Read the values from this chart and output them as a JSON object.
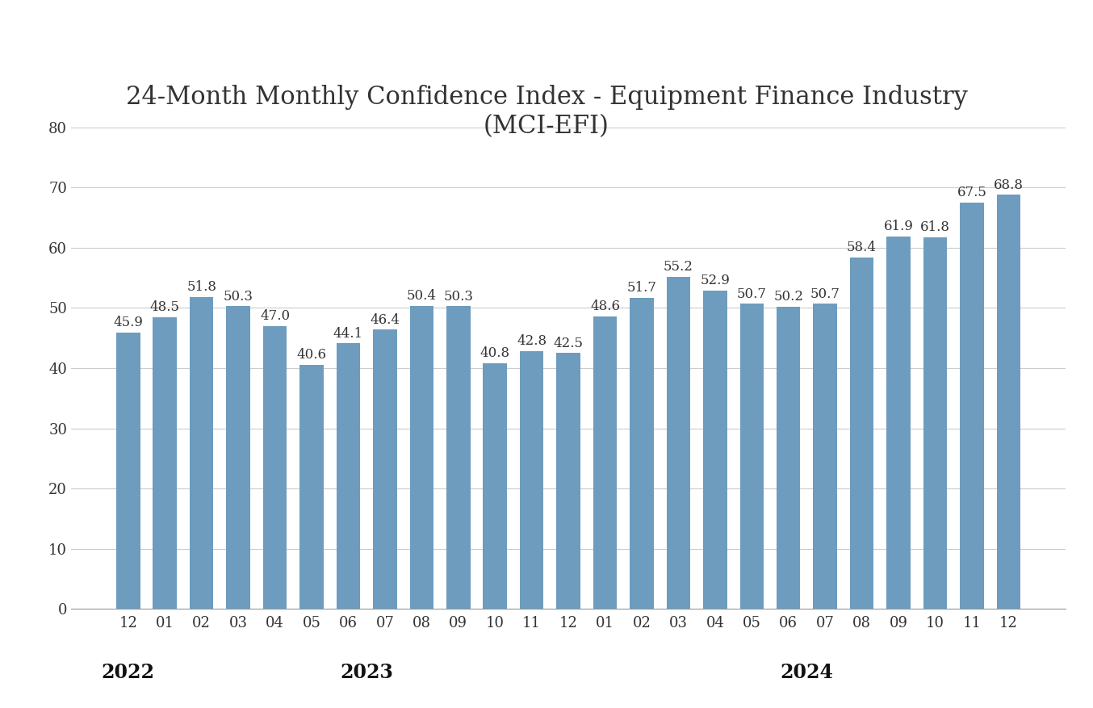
{
  "title_line1": "24-Month Monthly Confidence Index - Equipment Finance Industry",
  "title_line2": "(MCI-EFI)",
  "categories": [
    "12",
    "01",
    "02",
    "03",
    "04",
    "05",
    "06",
    "07",
    "08",
    "09",
    "10",
    "11",
    "12",
    "01",
    "02",
    "03",
    "04",
    "05",
    "06",
    "07",
    "08",
    "09",
    "10",
    "11",
    "12"
  ],
  "values": [
    45.9,
    48.5,
    51.8,
    50.3,
    47.0,
    40.6,
    44.1,
    46.4,
    50.4,
    50.3,
    40.8,
    42.8,
    42.5,
    48.6,
    51.7,
    55.2,
    52.9,
    50.7,
    50.2,
    50.7,
    58.4,
    61.9,
    61.8,
    67.5,
    68.8
  ],
  "bar_color": "#6d9cbf",
  "ylim": [
    0,
    80
  ],
  "yticks": [
    0,
    10,
    20,
    30,
    40,
    50,
    60,
    70,
    80
  ],
  "title_fontsize": 22,
  "tick_fontsize": 13,
  "value_fontsize": 12,
  "year_label_fontsize": 17,
  "background_color": "#ffffff",
  "grid_color": "#cccccc",
  "year_groups": [
    {
      "label": "2022",
      "start": 0,
      "end": 0
    },
    {
      "label": "2023",
      "start": 1,
      "end": 12
    },
    {
      "label": "2024",
      "start": 13,
      "end": 24
    }
  ]
}
